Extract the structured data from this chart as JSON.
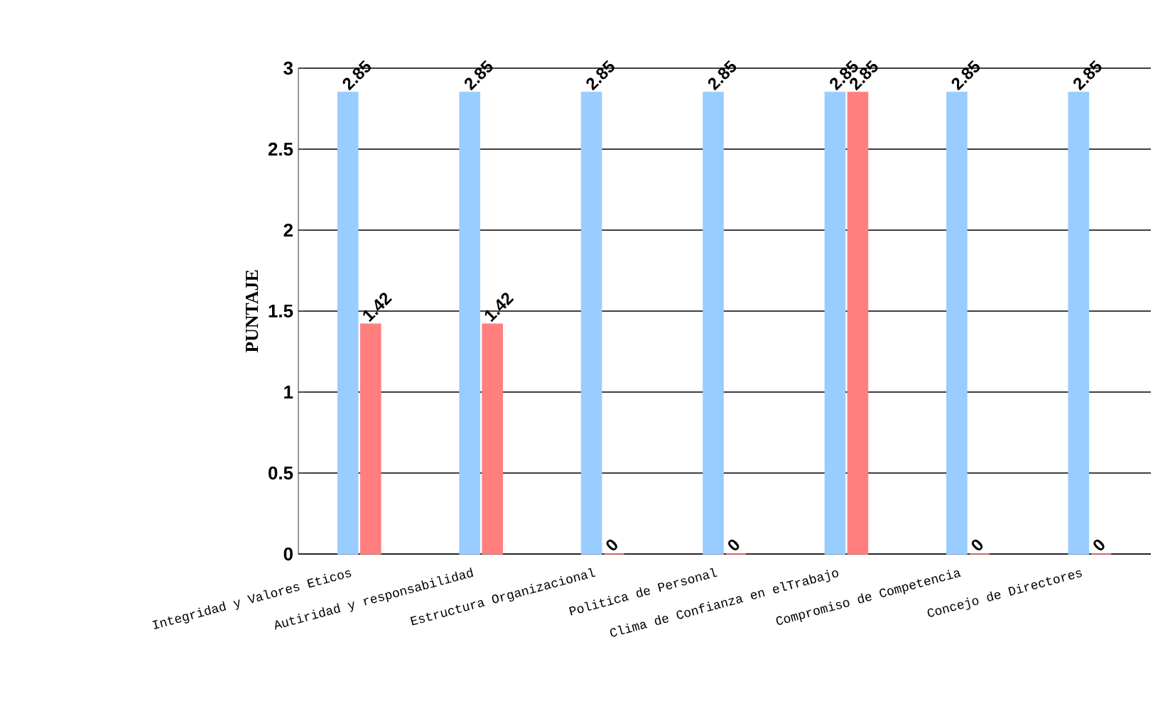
{
  "chart_data": {
    "type": "bar",
    "ylabel": "PUNTAJE",
    "categories": [
      "Integridad y Valores Eticos",
      "Autiridad y responsabilidad",
      "Estructura Organizacional",
      "Politica de Personal",
      "Clima de Confianza en elTrabajo",
      "Compromiso de Competencia",
      "Concejo de Directores"
    ],
    "series": [
      {
        "color": "#99ccff",
        "values": [
          2.85,
          2.85,
          2.85,
          2.85,
          2.85,
          2.85,
          2.85
        ]
      },
      {
        "color": "#ff7f7f",
        "values": [
          1.42,
          1.42,
          0,
          0,
          2.85,
          0,
          0
        ]
      }
    ],
    "ylim": [
      0,
      3
    ],
    "yticks": [
      0,
      0.5,
      1,
      1.5,
      2,
      2.5,
      3
    ],
    "grid": "y",
    "data_labels": true
  }
}
